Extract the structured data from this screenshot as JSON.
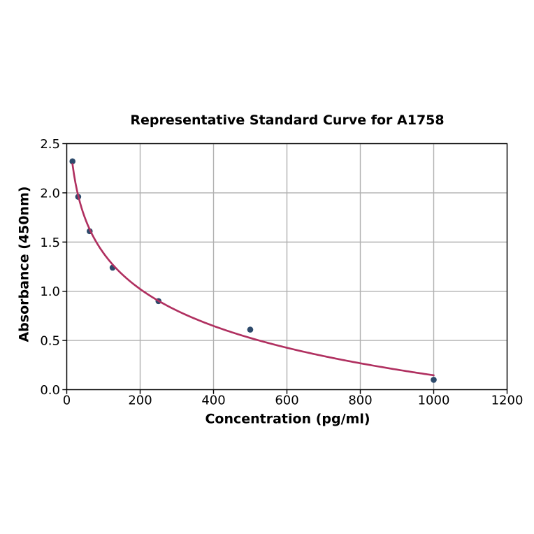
{
  "chart_data": {
    "type": "scatter",
    "title": "Representative Standard Curve for A1758",
    "xlabel": "Concentration (pg/ml)",
    "ylabel": "Absorbance (450nm)",
    "xlim": [
      0,
      1200
    ],
    "ylim": [
      0.0,
      2.5
    ],
    "x_ticks": [
      0,
      200,
      400,
      600,
      800,
      1000,
      1200
    ],
    "x_tick_labels": [
      "0",
      "200",
      "400",
      "600",
      "800",
      "1000",
      "1200"
    ],
    "y_ticks": [
      0.0,
      0.5,
      1.0,
      1.5,
      2.0,
      2.5
    ],
    "y_tick_labels": [
      "0.0",
      "0.5",
      "1.0",
      "1.5",
      "2.0",
      "2.5"
    ],
    "grid": true,
    "legend": false,
    "points": {
      "x": [
        15.6,
        31.2,
        62.5,
        125,
        250,
        500,
        1000
      ],
      "y": [
        2.32,
        1.96,
        1.61,
        1.24,
        0.9,
        0.61,
        0.1
      ]
    },
    "fit_curve": {
      "model": "4PL",
      "formula": "y = d + (a - d) / (1 + (x/c)^b)",
      "a": 5.0,
      "b": 0.23393,
      "c": 733.7,
      "d": -4.36878,
      "x_start": 15.6,
      "x_end": 1000
    },
    "colors": {
      "background": "#ffffff",
      "curve": "#b03060",
      "marker": "#2d4a6b",
      "grid": "#b0b0b0",
      "axis": "#000000",
      "text": "#000000"
    }
  }
}
